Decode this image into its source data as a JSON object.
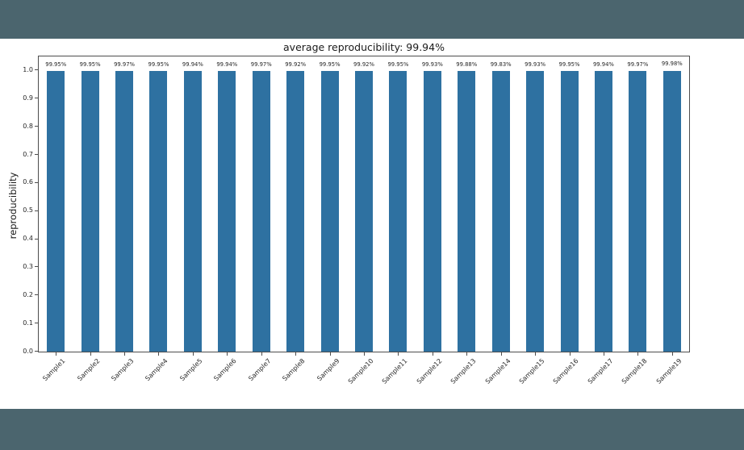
{
  "colors": {
    "band": "#4b656e",
    "figure_bg": "#ffffff",
    "bar": "#2e71a1",
    "axis": "#4d4d4d",
    "text": "#1a1a1a",
    "tick_text": "#262626"
  },
  "chart_data": {
    "type": "bar",
    "title": "average reproducibility: 99.94%",
    "ylabel": "reproducibility",
    "xlabel": "",
    "ylim": [
      0,
      1.05
    ],
    "grid": false,
    "legend": null,
    "yticks": [
      "0.0",
      "0.1",
      "0.2",
      "0.3",
      "0.4",
      "0.5",
      "0.6",
      "0.7",
      "0.8",
      "0.9",
      "1.0"
    ],
    "categories": [
      "Sample1",
      "Sample2",
      "Sample3",
      "Sample4",
      "Sample5",
      "Sample6",
      "Sample7",
      "Sample8",
      "Sample9",
      "Sample10",
      "Sample11",
      "Sample12",
      "Sample13",
      "Sample14",
      "Sample15",
      "Sample16",
      "Sample17",
      "Sample18",
      "Sample19"
    ],
    "values": [
      0.9995,
      0.9995,
      0.9997,
      0.9995,
      0.9994,
      0.9994,
      0.9997,
      0.9992,
      0.9995,
      0.9992,
      0.9995,
      0.9993,
      0.9988,
      0.9983,
      0.9993,
      0.9995,
      0.9994,
      0.9997,
      0.9998
    ],
    "bar_labels": [
      "99.95%",
      "99.95%",
      "99.97%",
      "99.95%",
      "99.94%",
      "99.94%",
      "99.97%",
      "99.92%",
      "99.95%",
      "99.92%",
      "99.95%",
      "99.93%",
      "99.88%",
      "99.83%",
      "99.93%",
      "99.95%",
      "99.94%",
      "99.97%",
      "99.98%"
    ]
  }
}
